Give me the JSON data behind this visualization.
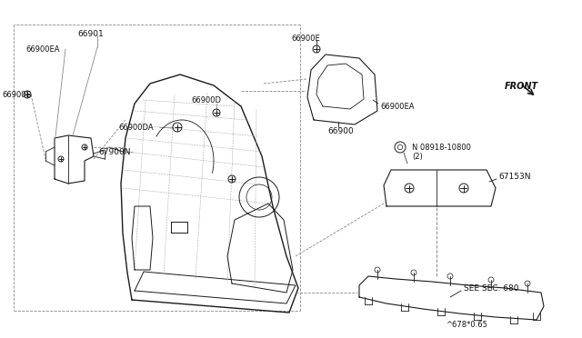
{
  "bg_color": "#ffffff",
  "line_color": "#1a1a1a",
  "dashed_color": "#888888",
  "fig_width": 6.4,
  "fig_height": 3.72,
  "dpi": 100,
  "diagram_code": "^678*0.65",
  "parts": {
    "main_panel_label": "67900N",
    "bracket_label": "66901",
    "bracket_sub_label": "66900EA",
    "bolt_left": "66900E",
    "bolt_lower_left": "66900DA",
    "bolt_lower_center": "66900D",
    "bolt_bottom_right": "66900E",
    "corner_panel_label": "66900",
    "corner_ea_label": "66900EA",
    "rail_label": "67153N",
    "nut_label": "N 08918-10800",
    "nut_qty": "(2)",
    "see_sec": "SEE SEC. 680",
    "front_label": "FRONT"
  }
}
